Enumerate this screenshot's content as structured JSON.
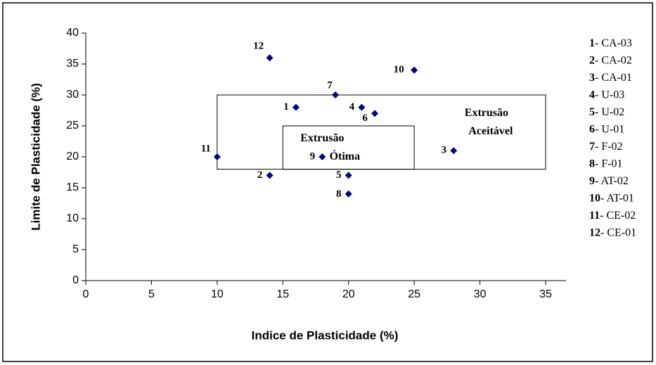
{
  "chart_data": {
    "type": "scatter",
    "x_label": "Indice de Plasticidade (%)",
    "y_label": "Limite de Plasticidade   (%)",
    "xlim": [
      0,
      35
    ],
    "ylim": [
      0,
      40
    ],
    "xticks": [
      0,
      5,
      10,
      15,
      20,
      25,
      30,
      35
    ],
    "yticks": [
      0,
      5,
      10,
      15,
      20,
      25,
      30,
      35,
      40
    ],
    "grid": false,
    "color": "#000080",
    "x": [
      16,
      14,
      28,
      21,
      20,
      22,
      19,
      20,
      18,
      25,
      10,
      14
    ],
    "values": [
      28,
      17,
      21,
      28,
      17,
      27,
      30,
      14,
      20,
      34,
      20,
      36
    ],
    "point_labels": [
      "1",
      "2",
      "3",
      "4",
      "5",
      "6",
      "7",
      "8",
      "9",
      "10",
      "11",
      "12"
    ],
    "regions": [
      {
        "x": [
          10,
          35
        ],
        "y": [
          18,
          30
        ],
        "label": [
          "Extrusão",
          "Aceitável"
        ]
      },
      {
        "x": [
          15,
          25
        ],
        "y": [
          18,
          25
        ],
        "label": [
          "Extrusão",
          "Ótima"
        ]
      }
    ],
    "legend": [
      {
        "key": "1",
        "text": "- CA-03"
      },
      {
        "key": "2",
        "text": "- CA-02"
      },
      {
        "key": "3",
        "text": "- CA-01"
      },
      {
        "key": "4",
        "text": "- U-03"
      },
      {
        "key": "5",
        "text": "- U-02"
      },
      {
        "key": "6",
        "text": "- U-01"
      },
      {
        "key": "7",
        "text": "- F-02"
      },
      {
        "key": "8",
        "text": "- F-01"
      },
      {
        "key": "9",
        "text": "- AT-02"
      },
      {
        "key": "10",
        "text": "- AT-01"
      },
      {
        "key": "11",
        "text": "- CE-02"
      },
      {
        "key": "12",
        "text": "- CE-01"
      }
    ]
  }
}
